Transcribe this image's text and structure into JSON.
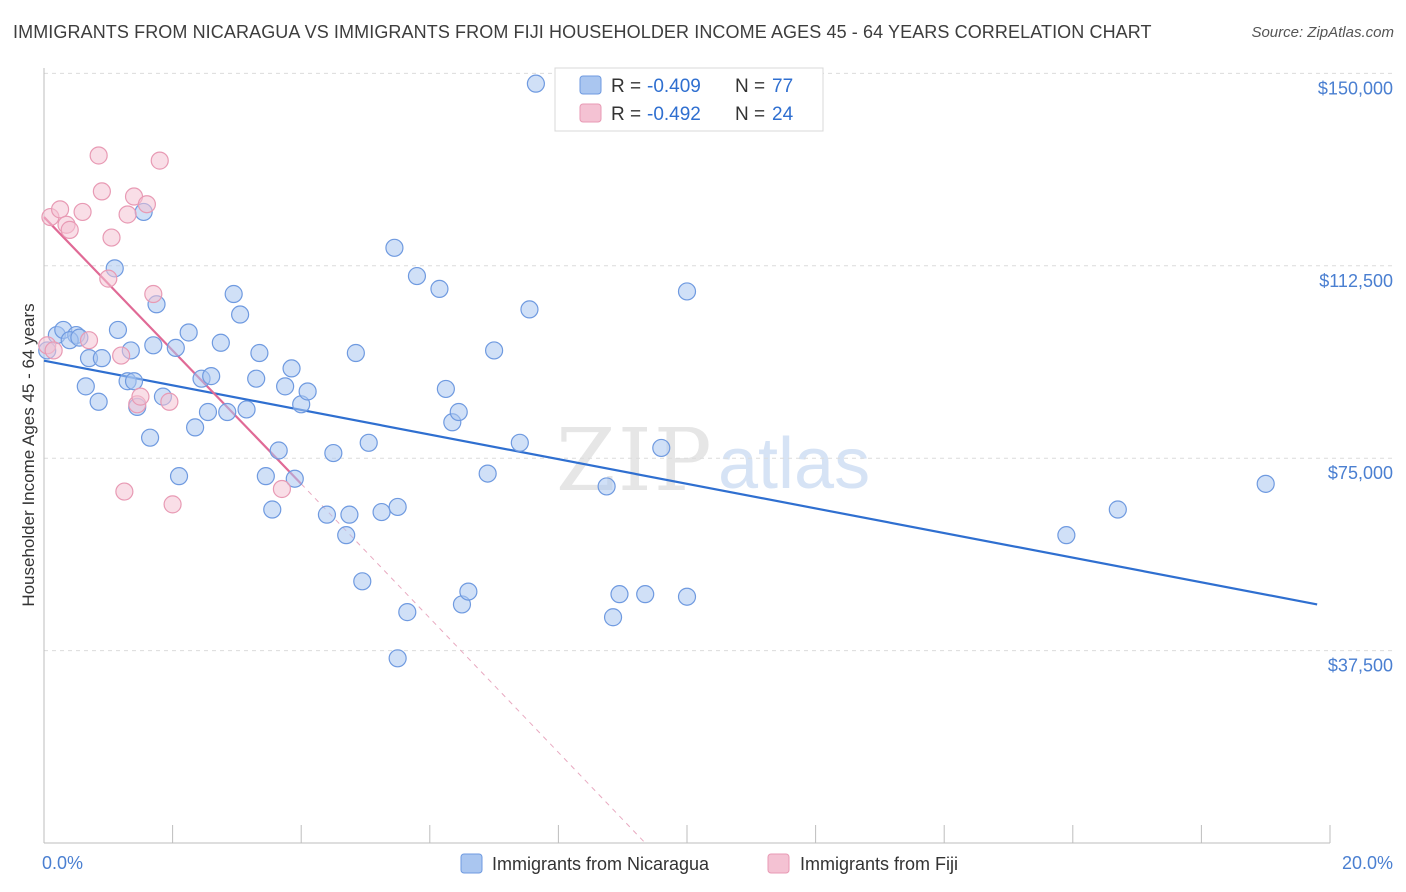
{
  "title": "IMMIGRANTS FROM NICARAGUA VS IMMIGRANTS FROM FIJI HOUSEHOLDER INCOME AGES 45 - 64 YEARS CORRELATION CHART",
  "source": "Source: ZipAtlas.com",
  "watermark": {
    "zip": "ZIP",
    "atlas": "atlas"
  },
  "legend": {
    "r_label": "R =",
    "n_label": "N =",
    "rows": [
      {
        "r": "-0.409",
        "n": "77"
      },
      {
        "r": "-0.492",
        "n": "24"
      }
    ]
  },
  "chart_data": {
    "type": "scatter",
    "ylabel": "Householder Income Ages 45 - 64 years",
    "xlim": [
      0,
      20
    ],
    "ylim": [
      0,
      153000
    ],
    "x_tick_labels": {
      "min": "0.0%",
      "max": "20.0%"
    },
    "y_ticks": [
      {
        "value": 37500,
        "label": "$37,500"
      },
      {
        "value": 75000,
        "label": "$75,000"
      },
      {
        "value": 112500,
        "label": "$112,500"
      },
      {
        "value": 150000,
        "label": "$150,000"
      }
    ],
    "grid": true,
    "series": [
      {
        "name": "Immigrants from Nicaragua",
        "color": "#6f9ae0",
        "fill": "#aac6f0",
        "trend": {
          "x": [
            0,
            19.8
          ],
          "y": [
            94000,
            46500
          ]
        },
        "points": [
          [
            0.05,
            96000
          ],
          [
            0.2,
            99000
          ],
          [
            0.3,
            100000
          ],
          [
            0.5,
            99000
          ],
          [
            0.4,
            98000
          ],
          [
            0.55,
            98500
          ],
          [
            0.7,
            94500
          ],
          [
            0.65,
            89000
          ],
          [
            0.85,
            86000
          ],
          [
            0.9,
            94500
          ],
          [
            1.1,
            112000
          ],
          [
            1.15,
            100000
          ],
          [
            1.3,
            90000
          ],
          [
            1.35,
            96000
          ],
          [
            1.4,
            90000
          ],
          [
            1.45,
            85000
          ],
          [
            1.55,
            123000
          ],
          [
            1.65,
            79000
          ],
          [
            1.75,
            105000
          ],
          [
            1.7,
            97000
          ],
          [
            1.85,
            87000
          ],
          [
            2.05,
            96500
          ],
          [
            2.1,
            71500
          ],
          [
            2.25,
            99500
          ],
          [
            2.35,
            81000
          ],
          [
            2.45,
            90500
          ],
          [
            2.55,
            84000
          ],
          [
            2.6,
            91000
          ],
          [
            2.75,
            97500
          ],
          [
            2.85,
            84000
          ],
          [
            2.95,
            107000
          ],
          [
            3.05,
            103000
          ],
          [
            3.15,
            84500
          ],
          [
            3.3,
            90500
          ],
          [
            3.35,
            95500
          ],
          [
            3.45,
            71500
          ],
          [
            3.55,
            65000
          ],
          [
            3.65,
            76500
          ],
          [
            3.75,
            89000
          ],
          [
            3.85,
            92500
          ],
          [
            3.9,
            71000
          ],
          [
            4.0,
            85500
          ],
          [
            4.1,
            88000
          ],
          [
            4.4,
            64000
          ],
          [
            4.5,
            76000
          ],
          [
            4.7,
            60000
          ],
          [
            4.75,
            64000
          ],
          [
            4.85,
            95500
          ],
          [
            4.95,
            51000
          ],
          [
            5.05,
            78000
          ],
          [
            5.25,
            64500
          ],
          [
            5.45,
            116000
          ],
          [
            5.5,
            65500
          ],
          [
            5.65,
            45000
          ],
          [
            5.8,
            110500
          ],
          [
            5.5,
            36000
          ],
          [
            6.15,
            108000
          ],
          [
            6.25,
            88500
          ],
          [
            6.35,
            82000
          ],
          [
            6.45,
            84000
          ],
          [
            6.5,
            46500
          ],
          [
            6.6,
            49000
          ],
          [
            7.0,
            96000
          ],
          [
            6.9,
            72000
          ],
          [
            7.4,
            78000
          ],
          [
            7.55,
            104000
          ],
          [
            7.65,
            148000
          ],
          [
            8.75,
            69500
          ],
          [
            8.85,
            44000
          ],
          [
            8.95,
            48500
          ],
          [
            9.35,
            48500
          ],
          [
            9.6,
            77000
          ],
          [
            10.0,
            48000
          ],
          [
            10.0,
            107500
          ],
          [
            15.9,
            60000
          ],
          [
            16.7,
            65000
          ],
          [
            19.0,
            70000
          ]
        ]
      },
      {
        "name": "Immigrants from Fiji",
        "color": "#e89ab4",
        "fill": "#f4c2d3",
        "trend": {
          "x": [
            0,
            4.0
          ],
          "y": [
            122000,
            70000
          ]
        },
        "trend_ext": {
          "x": [
            4.0,
            9.35
          ],
          "y": [
            70000,
            0
          ]
        },
        "points": [
          [
            0.05,
            97000
          ],
          [
            0.1,
            122000
          ],
          [
            0.25,
            123500
          ],
          [
            0.35,
            120500
          ],
          [
            0.4,
            119500
          ],
          [
            0.6,
            123000
          ],
          [
            0.7,
            98000
          ],
          [
            0.85,
            134000
          ],
          [
            0.9,
            127000
          ],
          [
            1.0,
            110000
          ],
          [
            1.05,
            118000
          ],
          [
            1.2,
            95000
          ],
          [
            1.3,
            122500
          ],
          [
            1.4,
            126000
          ],
          [
            1.45,
            85500
          ],
          [
            1.5,
            87000
          ],
          [
            1.6,
            124500
          ],
          [
            1.7,
            107000
          ],
          [
            1.8,
            133000
          ],
          [
            1.95,
            86000
          ],
          [
            2.0,
            66000
          ],
          [
            3.7,
            69000
          ],
          [
            1.25,
            68500
          ],
          [
            0.15,
            96000
          ]
        ]
      }
    ]
  }
}
